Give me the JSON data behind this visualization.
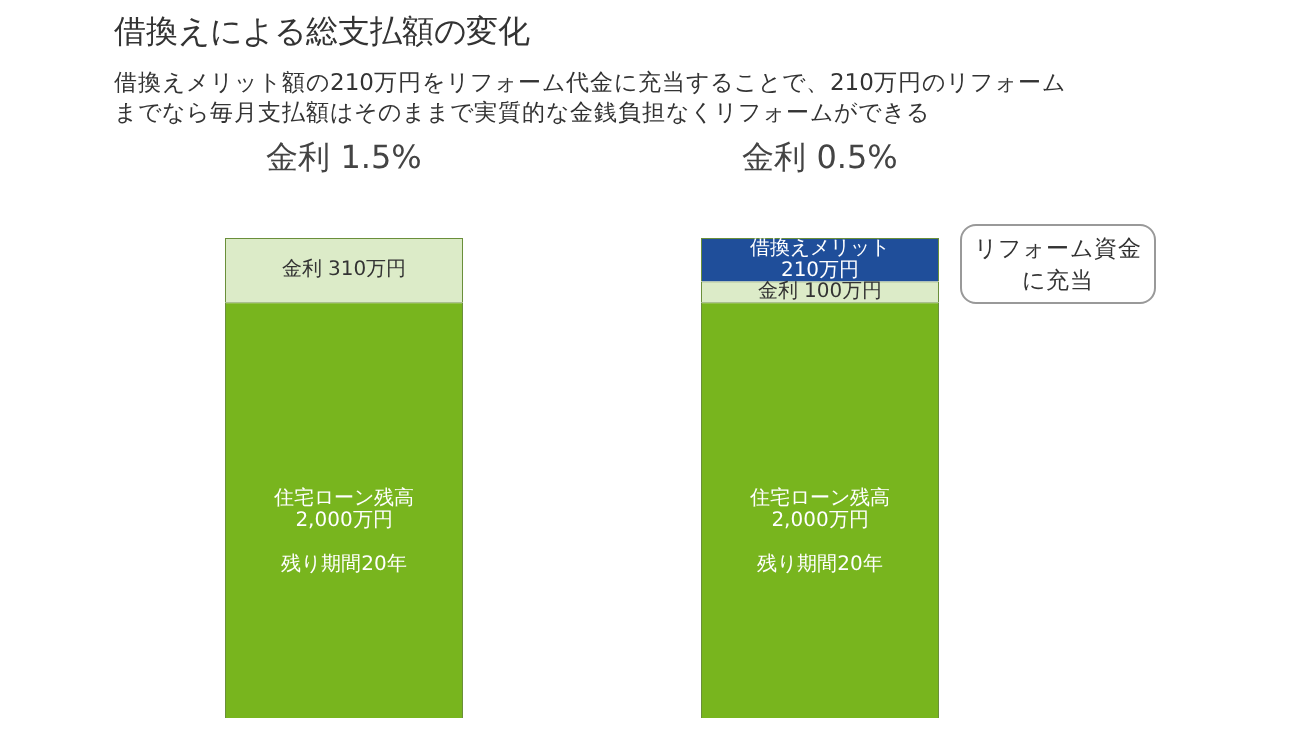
{
  "chart_data": {
    "type": "bar",
    "stacked": true,
    "title": "借換えによる総支払額の変化",
    "subtitle": "借換えメリット額の210万円をリフォーム代金に充当することで、210万円のリフォームまでなら毎月支払額はそのままで実質的な金銭負担なくリフォームができる",
    "categories": [
      "金利 1.5%",
      "金利 0.5%"
    ],
    "series": [
      {
        "color": "#78b51e",
        "values": [
          2000,
          2000
        ],
        "value_labels": [
          "住宅ローン残高2,000万円",
          "住宅ローン残高2,000万円"
        ]
      },
      {
        "color": "#dcebc8",
        "values": [
          310,
          100
        ],
        "value_labels": [
          "金利 310万円",
          "金利 100万円"
        ]
      },
      {
        "color": "#1f4e9a",
        "values": [
          null,
          210
        ],
        "value_labels": [
          null,
          "借換えメリット210万円"
        ]
      }
    ],
    "annotations": [
      "残り期間20年",
      "残り期間20年",
      "リフォーム資金に充当"
    ]
  }
}
